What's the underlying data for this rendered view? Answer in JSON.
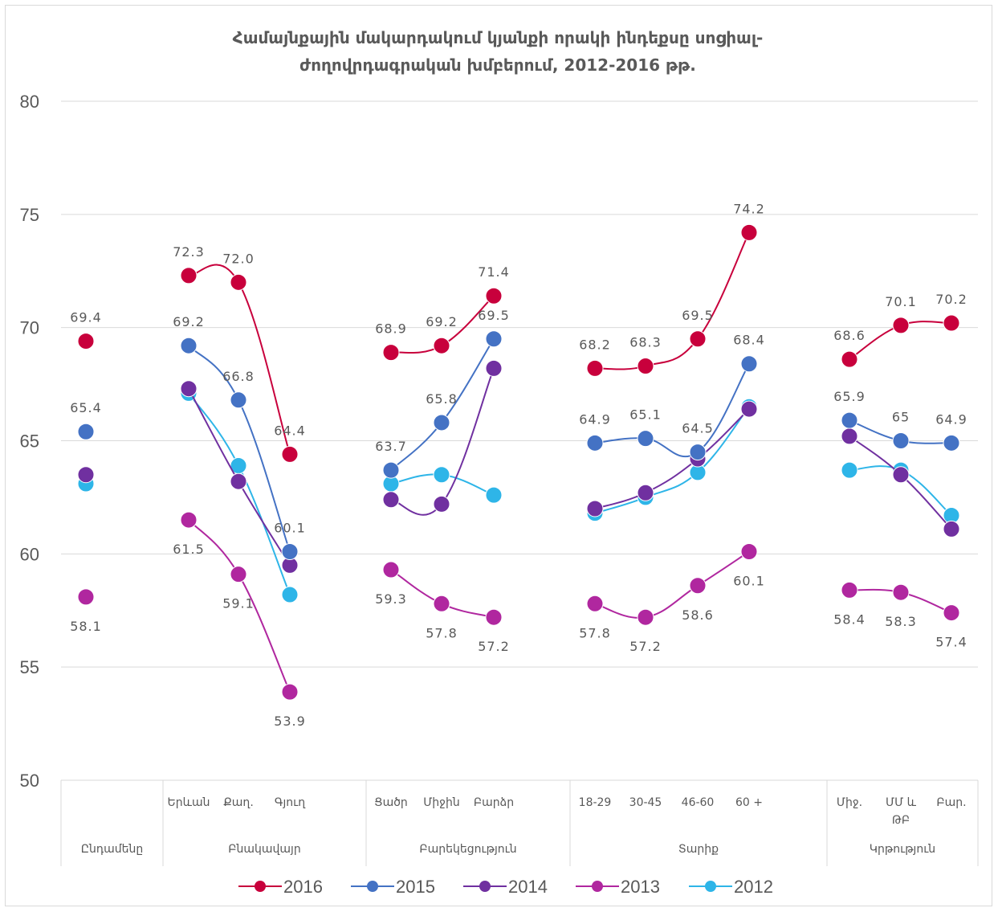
{
  "chart_data": {
    "type": "line",
    "title_lines": [
      "Համայնքային մակարդակում կյանքի որակի ինդեքսը սոցիալ-",
      "ժողովրդագրական խմբերում, 2012-2016 թթ."
    ],
    "ylim": [
      50,
      80
    ],
    "yticks": [
      "50",
      "55",
      "60",
      "65",
      "70",
      "75",
      "80"
    ],
    "grid": true,
    "legend_position": "bottom",
    "groups": [
      {
        "name": "Ընդամենը",
        "categories": [
          ""
        ]
      },
      {
        "name": "Բնակավայր",
        "categories": [
          "Երևան",
          "Քաղ.",
          "Գյուղ"
        ]
      },
      {
        "name": "Բարեկեցություն",
        "categories": [
          "Ցածր",
          "Միջին",
          "Բարձր"
        ]
      },
      {
        "name": "Տարիք",
        "categories": [
          "18-29",
          "30-45",
          "46-60",
          "60 +"
        ]
      },
      {
        "name": "Կրթություն",
        "categories": [
          "Միջ.",
          "ՄՄ և ԹԲ",
          "Բար."
        ]
      }
    ],
    "series": [
      {
        "name": "2016",
        "color": "#C8003C",
        "groups": [
          [
            69.4
          ],
          [
            72.3,
            72.0,
            64.4
          ],
          [
            68.9,
            69.2,
            71.4
          ],
          [
            68.2,
            68.3,
            69.5,
            74.2
          ],
          [
            68.6,
            70.1,
            70.2
          ]
        ],
        "labels": [
          [
            "69.4"
          ],
          [
            "72.3",
            "72.0",
            "64.4"
          ],
          [
            "68.9",
            "69.2",
            "71.4"
          ],
          [
            "68.2",
            "68.3",
            "69.5",
            "74.2"
          ],
          [
            "68.6",
            "70.1",
            "70.2"
          ]
        ]
      },
      {
        "name": "2015",
        "color": "#4472C4",
        "groups": [
          [
            65.4
          ],
          [
            69.2,
            66.8,
            60.1
          ],
          [
            63.7,
            65.8,
            69.5
          ],
          [
            64.9,
            65.1,
            64.5,
            68.4
          ],
          [
            65.9,
            65.0,
            64.9
          ]
        ],
        "labels": [
          [
            "65.4"
          ],
          [
            "69.2",
            "66.8",
            "60.1"
          ],
          [
            "63.7",
            "65.8",
            "69.5"
          ],
          [
            "64.9",
            "65.1",
            "64.5",
            "68.4"
          ],
          [
            "65.9",
            "65",
            "64.9"
          ]
        ]
      },
      {
        "name": "2014",
        "color": "#7030A0",
        "groups": [
          [
            63.5
          ],
          [
            67.3,
            63.2,
            59.5
          ],
          [
            62.4,
            62.2,
            68.2
          ],
          [
            62.0,
            62.7,
            64.2,
            66.4
          ],
          [
            65.2,
            63.5,
            61.1
          ]
        ]
      },
      {
        "name": "2013",
        "color": "#B0279F",
        "groups": [
          [
            58.1
          ],
          [
            61.5,
            59.1,
            53.9
          ],
          [
            59.3,
            57.8,
            57.2
          ],
          [
            57.8,
            57.2,
            58.6,
            60.1
          ],
          [
            58.4,
            58.3,
            57.4
          ]
        ],
        "labels": [
          [
            "58.1"
          ],
          [
            "61.5",
            "59.1",
            "53.9"
          ],
          [
            "59.3",
            "57.8",
            "57.2"
          ],
          [
            "57.8",
            "57.2",
            "58.6",
            "60.1"
          ],
          [
            "58.4",
            "58.3",
            "57.4"
          ]
        ]
      },
      {
        "name": "2012",
        "color": "#2EB5E8",
        "groups": [
          [
            63.1
          ],
          [
            67.1,
            63.9,
            58.2
          ],
          [
            63.1,
            63.5,
            62.6
          ],
          [
            61.8,
            62.5,
            63.6,
            66.5
          ],
          [
            63.7,
            63.7,
            61.7
          ]
        ]
      }
    ]
  }
}
